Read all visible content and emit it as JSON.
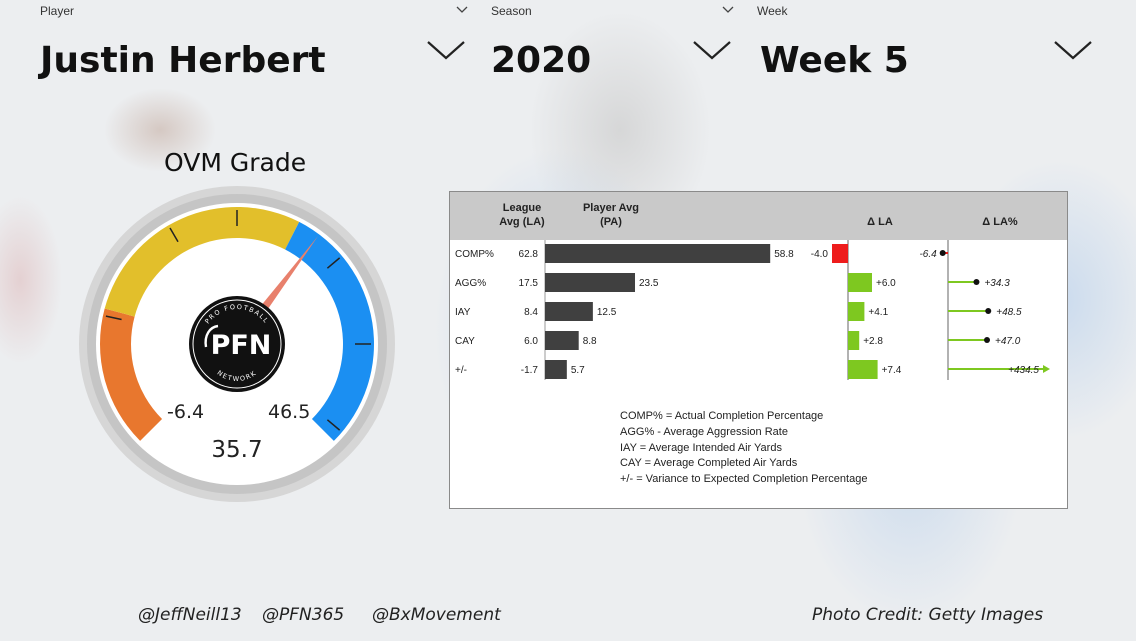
{
  "slicers": {
    "player": {
      "label": "Player",
      "value": "Justin Herbert"
    },
    "season": {
      "label": "Season",
      "value": "2020"
    },
    "week": {
      "label": "Week",
      "value": "Week 5"
    }
  },
  "gauge": {
    "title": "OVM Grade",
    "value": 35.7,
    "value_label": "35.7",
    "min_label": "-6.4",
    "max_label": "46.5",
    "logo_text": "PFN",
    "logo_ring_top": "PRO FOOTBALL",
    "logo_ring_bottom": "NETWORK",
    "colors": {
      "low": "#e8772e",
      "mid": "#e2bf2b",
      "high": "#1b8ff2",
      "needle": "#e8806c"
    }
  },
  "table": {
    "headers": {
      "league_avg": "League Avg (LA)",
      "player_avg": "Player Avg (PA)",
      "delta_la": "Δ LA",
      "delta_la_pct": "Δ LA%"
    },
    "rows": [
      {
        "metric": "COMP%",
        "la": "62.8",
        "pa": "58.8",
        "pa_value": 58.8,
        "delta": "-4.0",
        "delta_value": -4.0,
        "pct": "-6.4",
        "pct_value": -6.4
      },
      {
        "metric": "AGG%",
        "la": "17.5",
        "pa": "23.5",
        "pa_value": 23.5,
        "delta": "+6.0",
        "delta_value": 6.0,
        "pct": "+34.3",
        "pct_value": 34.3
      },
      {
        "metric": "IAY",
        "la": "8.4",
        "pa": "12.5",
        "pa_value": 12.5,
        "delta": "+4.1",
        "delta_value": 4.1,
        "pct": "+48.5",
        "pct_value": 48.5
      },
      {
        "metric": "CAY",
        "la": "6.0",
        "pa": "8.8",
        "pa_value": 8.8,
        "delta": "+2.8",
        "delta_value": 2.8,
        "pct": "+47.0",
        "pct_value": 47.0
      },
      {
        "metric": "+/-",
        "la": "-1.7",
        "pa": "5.7",
        "pa_value": 5.7,
        "delta": "+7.4",
        "delta_value": 7.4,
        "pct": "+434.5",
        "pct_value": 434.5
      }
    ],
    "colors": {
      "bar": "#404040",
      "positive": "#7ec820",
      "negative": "#ee1c1c"
    },
    "legend": [
      "COMP% = Actual Completion Percentage",
      "AGG% - Average Aggression Rate",
      "IAY = Average Intended Air Yards",
      "CAY = Average Completed Air Yards",
      "+/- = Variance to Expected Completion Percentage"
    ]
  },
  "footer": {
    "handle1": "@JeffNeill13",
    "handle2": "@PFN365",
    "handle3": "@BxMovement",
    "credit": "Photo Credit: Getty Images"
  }
}
